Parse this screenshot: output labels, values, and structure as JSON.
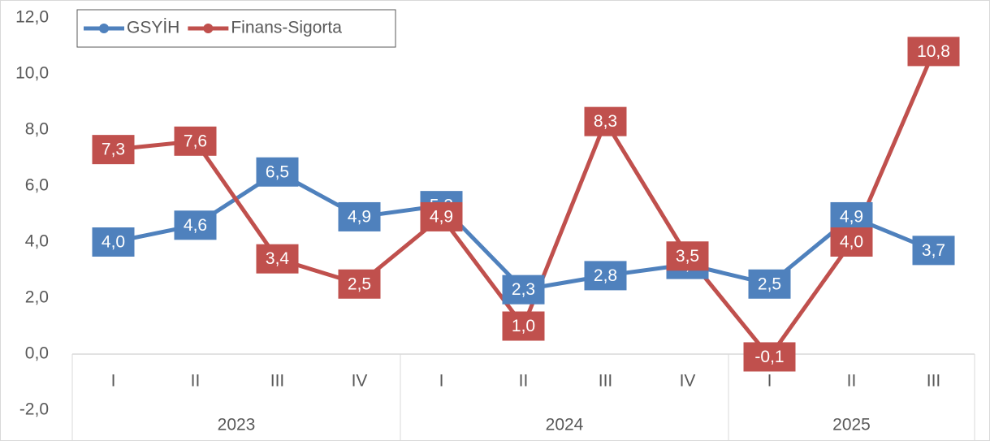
{
  "chart_data": {
    "type": "line",
    "groups": [
      {
        "label": "2023",
        "categories": [
          "I",
          "II",
          "III",
          "IV"
        ]
      },
      {
        "label": "2024",
        "categories": [
          "I",
          "II",
          "III",
          "IV"
        ]
      },
      {
        "label": "2025",
        "categories": [
          "I",
          "II",
          "III"
        ]
      }
    ],
    "series": [
      {
        "name": "GSYİH",
        "color": "#4f81bd",
        "values": [
          4.0,
          4.6,
          6.5,
          4.9,
          5.3,
          2.3,
          2.8,
          3.2,
          2.5,
          4.9,
          3.7
        ],
        "value_labels": [
          "4,0",
          "4,6",
          "6,5",
          "4,9",
          "5,3",
          "2,3",
          "2,8",
          "3,2",
          "2,5",
          "4,9",
          "3,7"
        ]
      },
      {
        "name": "Finans-Sigorta",
        "color": "#c0504d",
        "values": [
          7.3,
          7.6,
          3.4,
          2.5,
          4.9,
          1.0,
          8.3,
          3.5,
          -0.1,
          4.0,
          10.8
        ],
        "value_labels": [
          "7,3",
          "7,6",
          "3,4",
          "2,5",
          "4,9",
          "1,0",
          "8,3",
          "3,5",
          "-0,1",
          "4,0",
          "10,8"
        ]
      }
    ],
    "ylim": [
      -2,
      12
    ],
    "yticks": [
      {
        "value": -2,
        "label": "-2,0"
      },
      {
        "value": 0,
        "label": "0,0"
      },
      {
        "value": 2,
        "label": "2,0"
      },
      {
        "value": 4,
        "label": "4,0"
      },
      {
        "value": 6,
        "label": "6,0"
      },
      {
        "value": 8,
        "label": "8,0"
      },
      {
        "value": 10,
        "label": "10,0"
      },
      {
        "value": 12,
        "label": "12,0"
      }
    ],
    "grid": false,
    "legend": "top-left"
  }
}
